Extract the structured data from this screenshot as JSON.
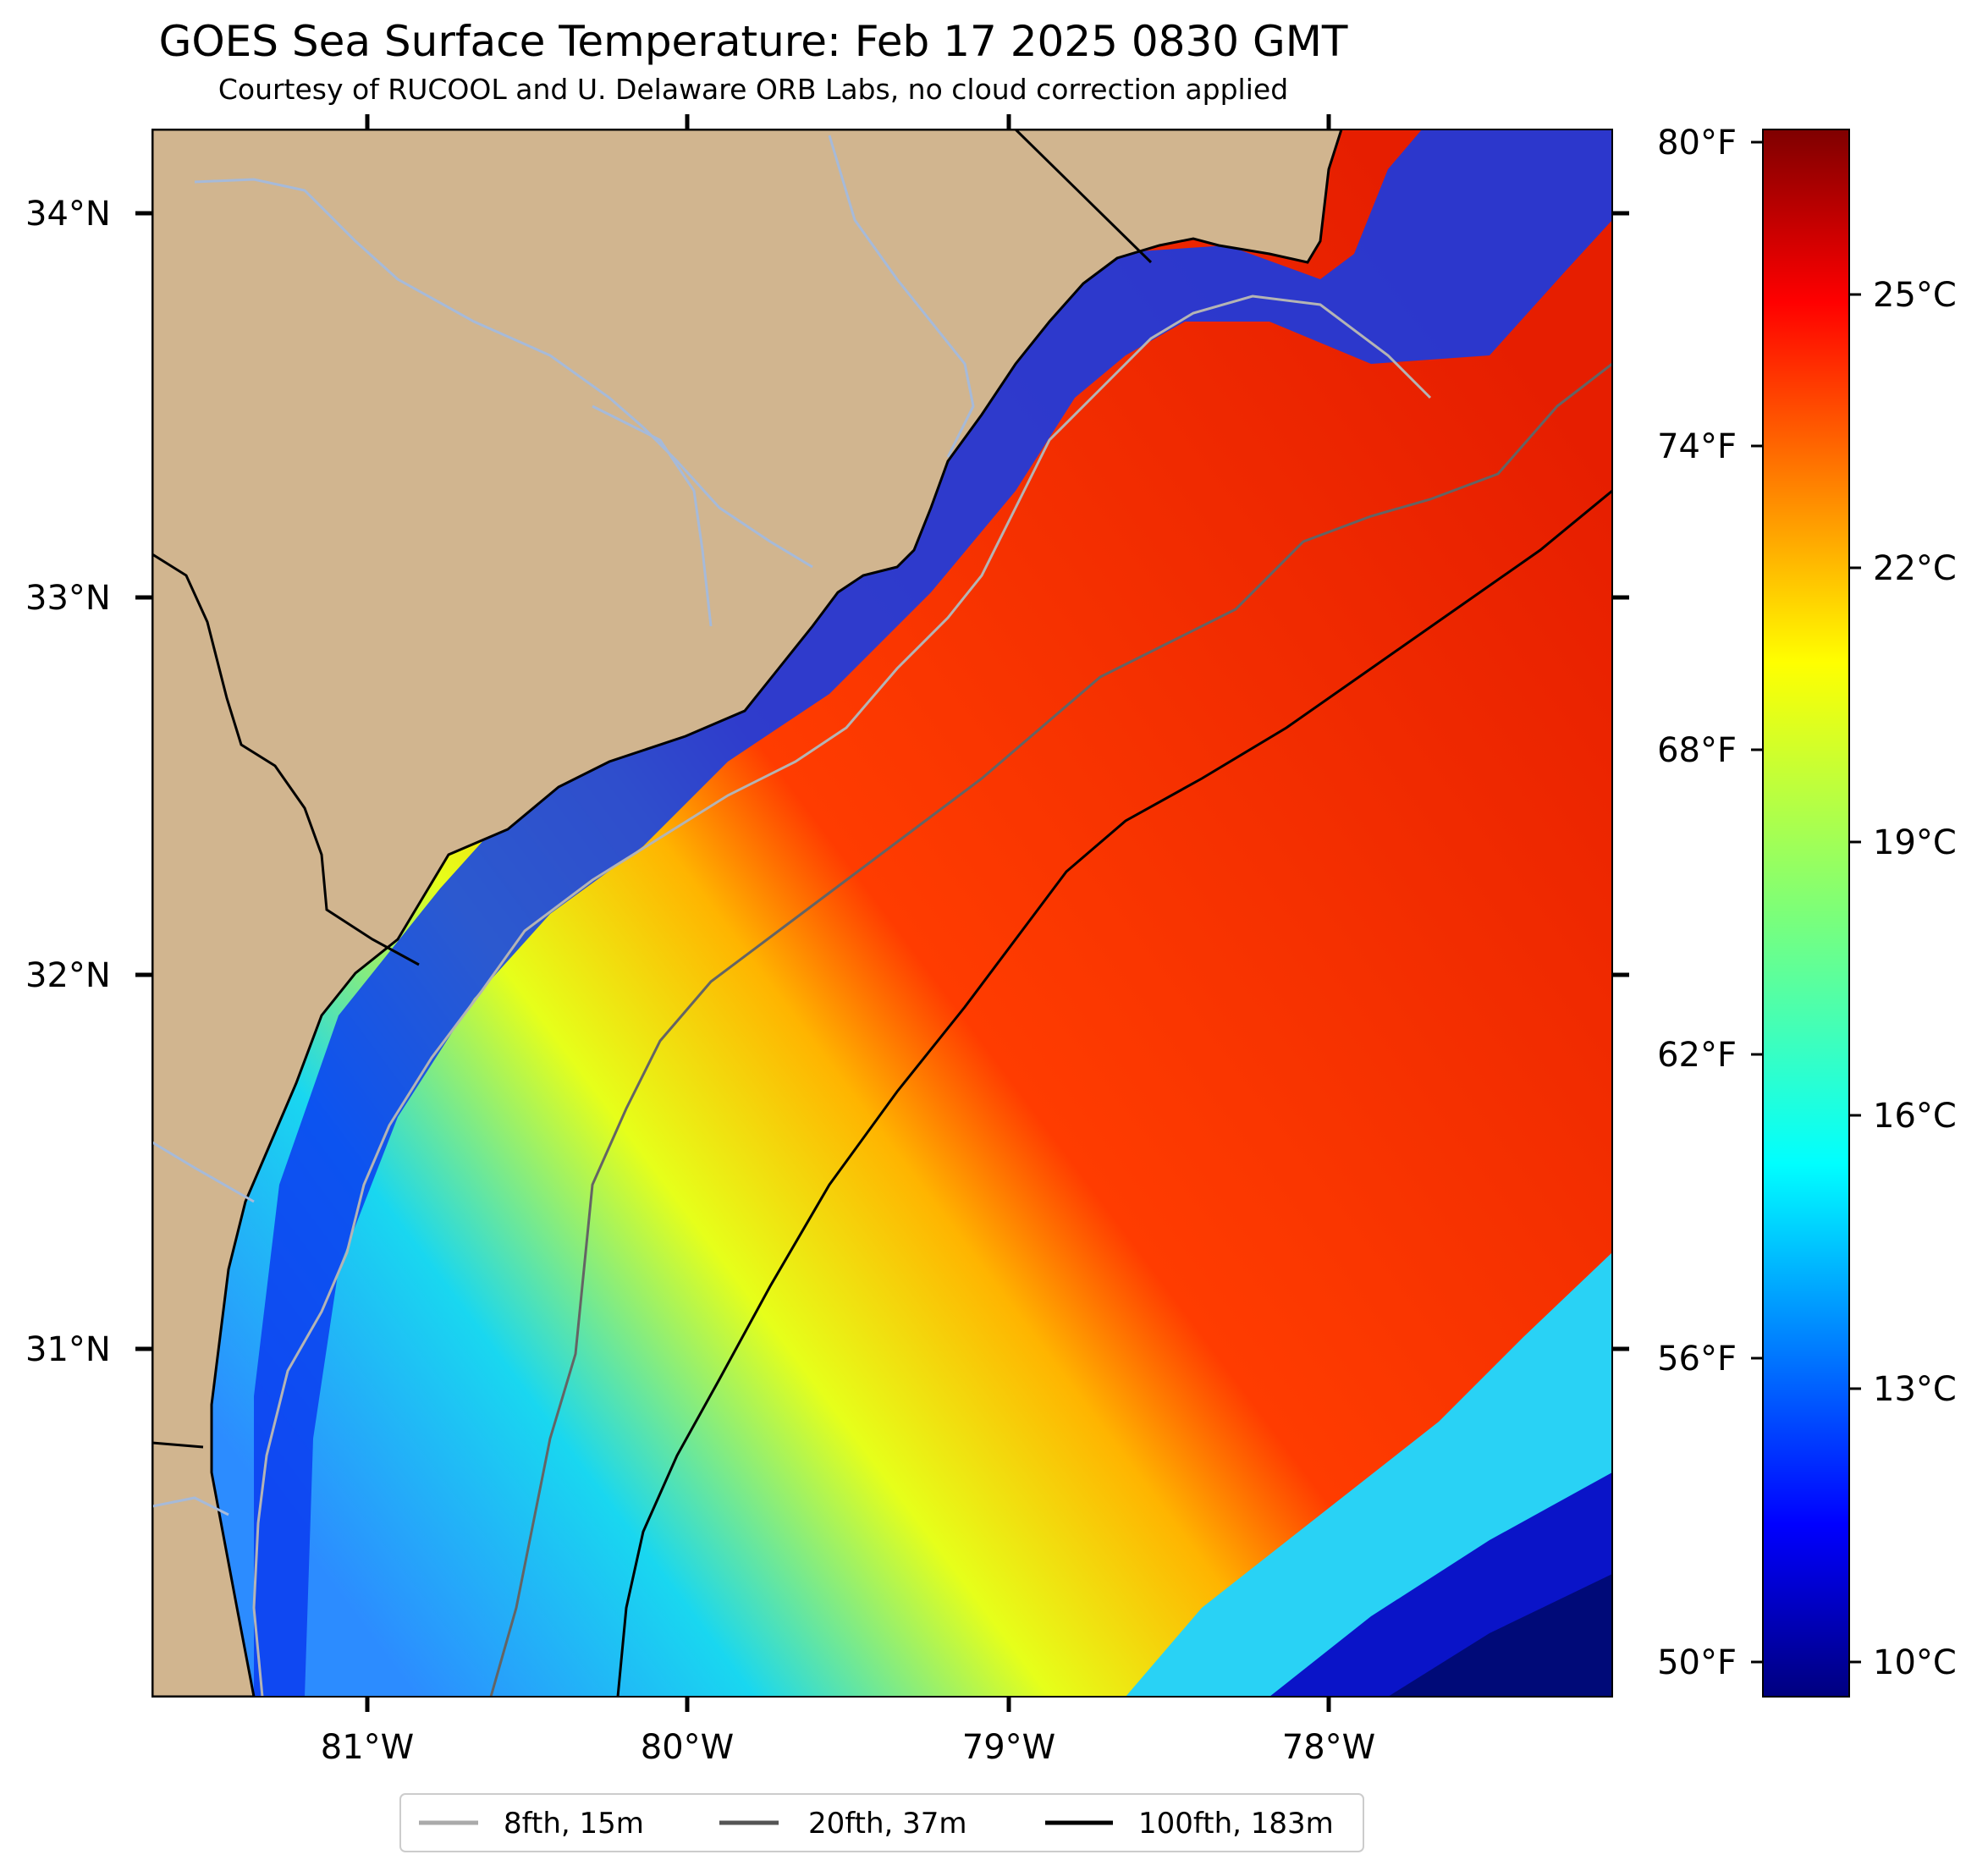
{
  "title": "GOES Sea Surface Temperature: Feb 17 2025 0830 GMT",
  "subtitle": "Courtesy of RUCOOL and U. Delaware ORB Labs, no cloud correction applied",
  "map": {
    "lon_range": [
      -81.67,
      -77.1
    ],
    "lat_range": [
      30.18,
      34.22
    ],
    "lat_labels": [
      "34°N",
      "33°N",
      "32°N",
      "31°N"
    ],
    "lon_labels": [
      "81°W",
      "80°W",
      "79°W",
      "78°W"
    ]
  },
  "colorbar": {
    "fahrenheit_labels": [
      "80°F",
      "74°F",
      "68°F",
      "62°F",
      "56°F",
      "50°F"
    ],
    "celsius_labels": [
      "25°C",
      "22°C",
      "19°C",
      "16°C",
      "13°C",
      "10°C"
    ],
    "colormap": "jet"
  },
  "legend": {
    "items": [
      {
        "label": "8fth, 15m",
        "color": "#aaaaaa"
      },
      {
        "label": "20fth, 37m",
        "color": "#555555"
      },
      {
        "label": "100fth, 183m",
        "color": "#000000"
      }
    ]
  },
  "colors": {
    "land": "#d1b58f",
    "rivers": "#a6bad9",
    "cold": "#0a1fd6",
    "warm": "#e81e00"
  }
}
